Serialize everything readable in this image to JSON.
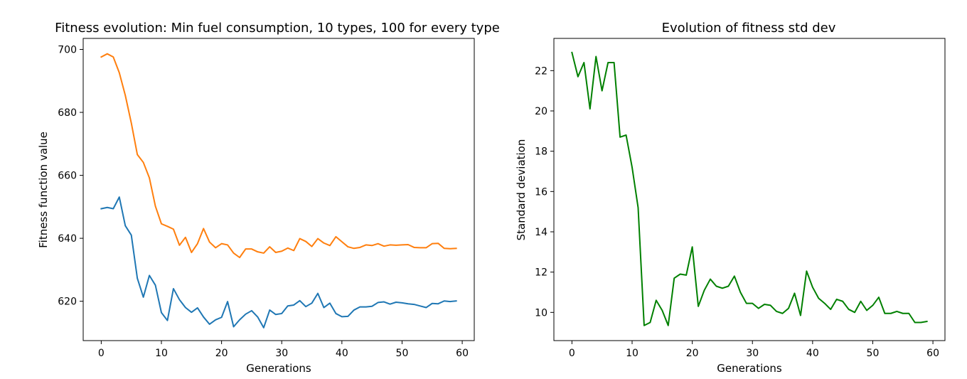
{
  "chart_data": [
    {
      "type": "line",
      "title": "Fitness evolution: Min fuel consumption, 10 types, 100 for every type",
      "xlabel": "Generations",
      "ylabel": "Fitness function value",
      "xlim": [
        -3,
        62
      ],
      "ylim": [
        607.5,
        703.5
      ],
      "xticks": [
        0,
        10,
        20,
        30,
        40,
        50,
        60
      ],
      "yticks": [
        620,
        640,
        660,
        680,
        700
      ],
      "grid": false,
      "legend": "none",
      "x": [
        0,
        1,
        2,
        3,
        4,
        5,
        6,
        7,
        8,
        9,
        10,
        11,
        12,
        13,
        14,
        15,
        16,
        17,
        18,
        19,
        20,
        21,
        22,
        23,
        24,
        25,
        26,
        27,
        28,
        29,
        30,
        31,
        32,
        33,
        34,
        35,
        36,
        37,
        38,
        39,
        40,
        41,
        42,
        43,
        44,
        45,
        46,
        47,
        48,
        49,
        50,
        51,
        52,
        53,
        54,
        55,
        56,
        57,
        58,
        59
      ],
      "series": [
        {
          "color": "#1f77b4",
          "values": [
            649.4,
            649.8,
            649.4,
            653.1,
            644.0,
            641.0,
            627.3,
            621.3,
            628.2,
            625.1,
            616.4,
            613.9,
            624.0,
            620.5,
            618.0,
            616.5,
            617.9,
            615.0,
            612.7,
            614.1,
            614.9,
            619.9,
            611.9,
            614.1,
            615.9,
            617.0,
            615.0,
            611.6,
            617.2,
            615.8,
            616.1,
            618.5,
            618.8,
            620.2,
            618.3,
            619.4,
            622.5,
            618.0,
            619.4,
            616.1,
            615.1,
            615.2,
            617.2,
            618.2,
            618.2,
            618.4,
            619.6,
            619.8,
            619.1,
            619.7,
            619.5,
            619.2,
            619.0,
            618.5,
            618.0,
            619.3,
            619.2,
            620.1,
            619.9,
            620.1
          ]
        },
        {
          "color": "#ff7f0e",
          "values": [
            697.6,
            698.6,
            697.6,
            692.6,
            685.4,
            676.6,
            666.6,
            664.1,
            659.2,
            650.2,
            644.6,
            643.8,
            642.9,
            637.8,
            640.3,
            635.5,
            638.3,
            643.1,
            638.8,
            637.0,
            638.3,
            637.9,
            635.3,
            633.9,
            636.6,
            636.6,
            635.7,
            635.3,
            637.3,
            635.5,
            635.9,
            636.9,
            636.1,
            639.9,
            639.0,
            637.4,
            639.9,
            638.5,
            637.7,
            640.5,
            638.9,
            637.3,
            636.8,
            637.1,
            637.9,
            637.7,
            638.3,
            637.5,
            637.9,
            637.8,
            637.9,
            638.0,
            637.1,
            637.0,
            637.0,
            638.3,
            638.4,
            636.8,
            636.7,
            636.8
          ]
        }
      ]
    },
    {
      "type": "line",
      "title": "Evolution of fitness std dev",
      "xlabel": "Generations",
      "ylabel": "Standard deviation",
      "xlim": [
        -3,
        62
      ],
      "ylim": [
        8.6,
        23.6
      ],
      "xticks": [
        0,
        10,
        20,
        30,
        40,
        50,
        60
      ],
      "yticks": [
        10,
        12,
        14,
        16,
        18,
        20,
        22
      ],
      "grid": false,
      "legend": "none",
      "x": [
        0,
        1,
        2,
        3,
        4,
        5,
        6,
        7,
        8,
        9,
        10,
        11,
        12,
        13,
        14,
        15,
        16,
        17,
        18,
        19,
        20,
        21,
        22,
        23,
        24,
        25,
        26,
        27,
        28,
        29,
        30,
        31,
        32,
        33,
        34,
        35,
        36,
        37,
        38,
        39,
        40,
        41,
        42,
        43,
        44,
        45,
        46,
        47,
        48,
        49,
        50,
        51,
        52,
        53,
        54,
        55,
        56,
        57,
        58,
        59
      ],
      "series": [
        {
          "color": "#008000",
          "values": [
            22.9,
            21.7,
            22.4,
            20.1,
            22.7,
            21.0,
            22.4,
            22.4,
            18.7,
            18.8,
            17.2,
            15.2,
            9.35,
            9.5,
            10.6,
            10.1,
            9.35,
            11.7,
            11.9,
            11.85,
            13.25,
            10.3,
            11.1,
            11.65,
            11.3,
            11.2,
            11.3,
            11.8,
            11.0,
            10.45,
            10.45,
            10.2,
            10.4,
            10.35,
            10.05,
            9.95,
            10.2,
            10.95,
            9.85,
            12.05,
            11.25,
            10.7,
            10.45,
            10.15,
            10.65,
            10.55,
            10.15,
            10.0,
            10.55,
            10.1,
            10.35,
            10.75,
            9.95,
            9.95,
            10.05,
            9.95,
            9.95,
            9.5,
            9.5,
            9.55
          ]
        }
      ]
    }
  ]
}
